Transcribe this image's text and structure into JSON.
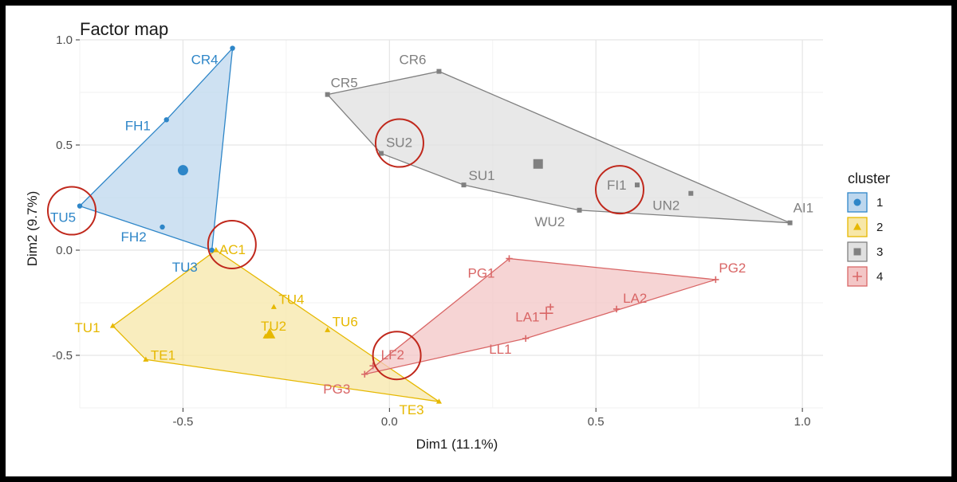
{
  "chart_data": {
    "type": "scatter",
    "title": "Factor map",
    "xlabel": "Dim1 (11.1%)",
    "ylabel": "Dim2 (9.7%)",
    "xlim": [
      -0.75,
      1.05
    ],
    "ylim": [
      -0.75,
      1.0
    ],
    "xticks": [
      -0.5,
      0.0,
      0.5,
      1.0
    ],
    "xtick_labels": [
      "-0.5",
      "0.0",
      "0.5",
      "1.0"
    ],
    "yticks": [
      -0.5,
      0.0,
      0.5,
      1.0
    ],
    "ytick_labels": [
      "-0.5",
      "0.0",
      "0.5",
      "1.0"
    ],
    "grid": true,
    "legend": {
      "title": "cluster",
      "position": "right",
      "entries": [
        {
          "label": "1",
          "color": "#2e86c8",
          "shape": "circle"
        },
        {
          "label": "2",
          "color": "#e6b800",
          "shape": "triangle"
        },
        {
          "label": "3",
          "color": "#808080",
          "shape": "square"
        },
        {
          "label": "4",
          "color": "#d96666",
          "shape": "plus"
        }
      ]
    },
    "clusters": [
      {
        "name": "1",
        "color": "#2e86c8",
        "fill": "#bdd7ee",
        "shape": "circle",
        "points": [
          {
            "label": "CR4",
            "x": -0.38,
            "y": 0.96
          },
          {
            "label": "FH1",
            "x": -0.54,
            "y": 0.62
          },
          {
            "label": "TU5",
            "x": -0.75,
            "y": 0.21
          },
          {
            "label": "FH2",
            "x": -0.55,
            "y": 0.11
          },
          {
            "label": "TU3",
            "x": -0.43,
            "y": 0.0
          }
        ],
        "centroid": {
          "x": -0.5,
          "y": 0.38
        },
        "hull": [
          "CR4",
          "FH1",
          "TU5",
          "TU3"
        ]
      },
      {
        "name": "2",
        "color": "#e6b800",
        "fill": "#f7e7a8",
        "shape": "triangle",
        "points": [
          {
            "label": "AC1",
            "x": -0.42,
            "y": 0.0
          },
          {
            "label": "TU4",
            "x": -0.28,
            "y": -0.27
          },
          {
            "label": "TU6",
            "x": -0.15,
            "y": -0.38
          },
          {
            "label": "TU2",
            "x": -0.3,
            "y": -0.41
          },
          {
            "label": "TU1",
            "x": -0.67,
            "y": -0.36
          },
          {
            "label": "TE1",
            "x": -0.59,
            "y": -0.52
          },
          {
            "label": "TE3",
            "x": 0.12,
            "y": -0.72
          }
        ],
        "centroid": {
          "x": -0.29,
          "y": -0.4
        },
        "hull": [
          "AC1",
          "TE3",
          "TE1",
          "TU1"
        ]
      },
      {
        "name": "3",
        "color": "#808080",
        "fill": "#e0e0e0",
        "shape": "square",
        "points": [
          {
            "label": "CR5",
            "x": -0.15,
            "y": 0.74
          },
          {
            "label": "CR6",
            "x": 0.12,
            "y": 0.85
          },
          {
            "label": "SU2",
            "x": -0.02,
            "y": 0.46
          },
          {
            "label": "SU1",
            "x": 0.18,
            "y": 0.31
          },
          {
            "label": "FI1",
            "x": 0.6,
            "y": 0.31
          },
          {
            "label": "UN2",
            "x": 0.73,
            "y": 0.27
          },
          {
            "label": "WU2",
            "x": 0.46,
            "y": 0.19
          },
          {
            "label": "AI1",
            "x": 0.97,
            "y": 0.13
          }
        ],
        "centroid": {
          "x": 0.36,
          "y": 0.41
        },
        "hull": [
          "CR5",
          "CR6",
          "AI1",
          "WU2",
          "SU1",
          "SU2"
        ]
      },
      {
        "name": "4",
        "color": "#d96666",
        "fill": "#f3c6c6",
        "shape": "plus",
        "points": [
          {
            "label": "PG1",
            "x": 0.29,
            "y": -0.04
          },
          {
            "label": "PG2",
            "x": 0.79,
            "y": -0.14
          },
          {
            "label": "LA2",
            "x": 0.55,
            "y": -0.28
          },
          {
            "label": "LA1",
            "x": 0.39,
            "y": -0.27
          },
          {
            "label": "LL1",
            "x": 0.33,
            "y": -0.42
          },
          {
            "label": "LF2",
            "x": -0.04,
            "y": -0.55
          },
          {
            "label": "PG3",
            "x": -0.06,
            "y": -0.59
          }
        ],
        "centroid": {
          "x": 0.38,
          "y": -0.3
        },
        "hull": [
          "PG1",
          "PG2",
          "LL1",
          "PG3"
        ]
      }
    ],
    "annotations": [
      {
        "type": "circle",
        "around": "TU5"
      },
      {
        "type": "circle",
        "around": "AC1"
      },
      {
        "type": "circle",
        "around": "SU2"
      },
      {
        "type": "circle",
        "around": "FI1"
      },
      {
        "type": "circle",
        "around": "LF2"
      }
    ],
    "annotation_color": "#c0281c"
  }
}
